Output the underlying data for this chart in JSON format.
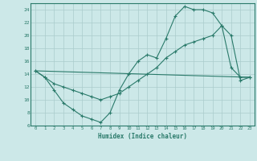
{
  "background_color": "#cce8e8",
  "grid_color": "#aacccc",
  "line_color": "#2a7a6a",
  "xlim": [
    -0.5,
    23.5
  ],
  "ylim": [
    6,
    25
  ],
  "yticks": [
    6,
    8,
    10,
    12,
    14,
    16,
    18,
    20,
    22,
    24
  ],
  "xticks": [
    0,
    1,
    2,
    3,
    4,
    5,
    6,
    7,
    8,
    9,
    10,
    11,
    12,
    13,
    14,
    15,
    16,
    17,
    18,
    19,
    20,
    21,
    22,
    23
  ],
  "xlabel": "Humidex (Indice chaleur)",
  "line1_x": [
    0,
    1,
    2,
    3,
    4,
    5,
    6,
    7,
    8,
    9,
    10,
    11,
    12,
    13,
    14,
    15,
    16,
    17,
    18,
    19,
    20,
    21,
    22,
    23
  ],
  "line1_y": [
    14.5,
    13.5,
    11.5,
    9.5,
    8.5,
    7.5,
    7.0,
    6.5,
    8.0,
    11.5,
    14.0,
    16.0,
    17.0,
    16.5,
    19.5,
    23.0,
    24.5,
    24.0,
    24.0,
    23.5,
    21.5,
    15.0,
    13.5,
    13.5
  ],
  "line2_x": [
    0,
    1,
    2,
    3,
    4,
    5,
    6,
    7,
    8,
    9,
    10,
    11,
    12,
    13,
    14,
    15,
    16,
    17,
    18,
    19,
    20,
    21,
    22,
    23
  ],
  "line2_y": [
    14.5,
    13.5,
    12.5,
    12.0,
    11.5,
    11.0,
    10.5,
    10.0,
    10.5,
    11.0,
    12.0,
    13.0,
    14.0,
    15.0,
    16.5,
    17.5,
    18.5,
    19.0,
    19.5,
    20.0,
    21.5,
    20.0,
    13.0,
    13.5
  ],
  "line3_x": [
    0,
    23
  ],
  "line3_y": [
    14.5,
    13.5
  ]
}
